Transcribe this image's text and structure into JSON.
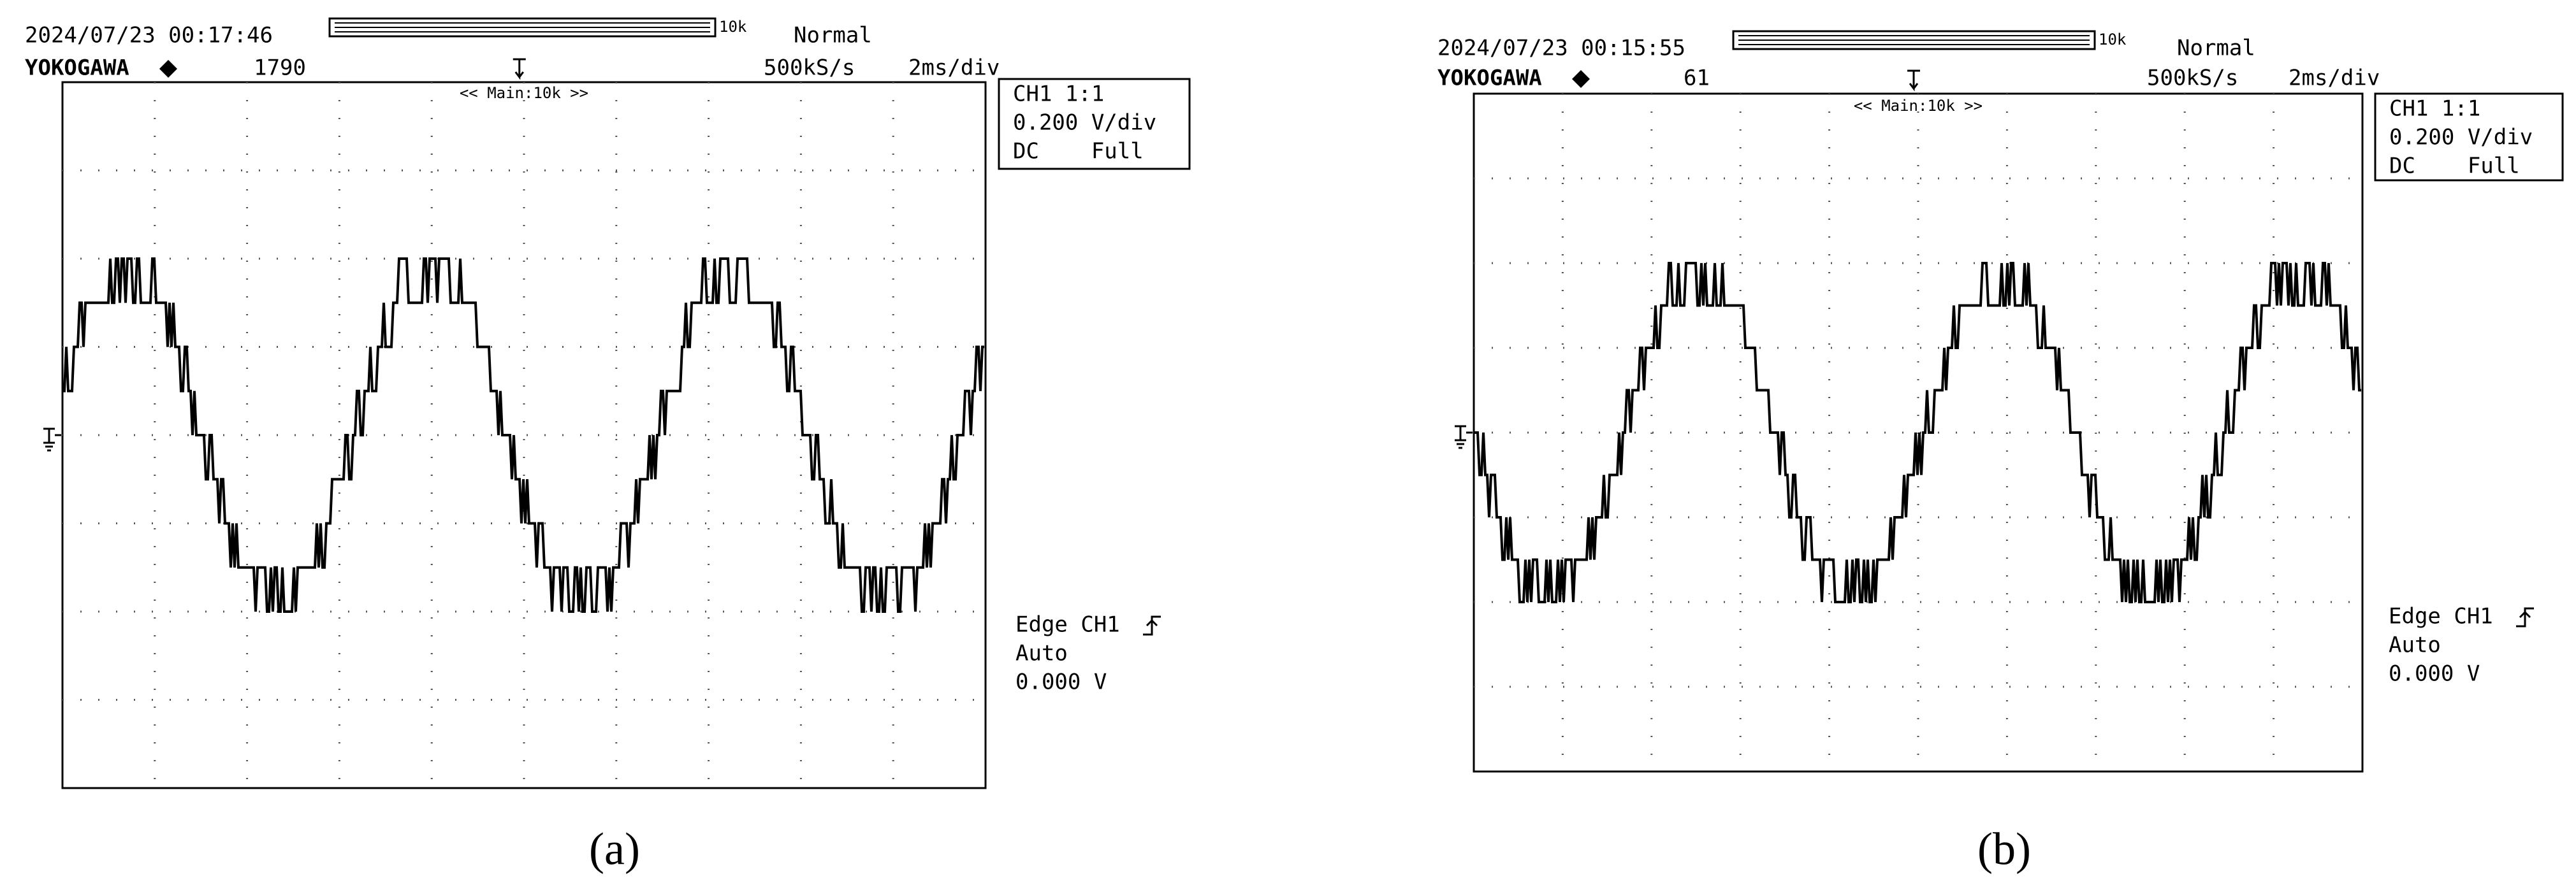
{
  "panels": [
    {
      "timestamp": "2024/07/23 00:17:46",
      "brand": "YOKOGAWA",
      "count": "1790",
      "record": "10k",
      "mode": "Normal",
      "sample_rate": "500kS/s",
      "time_div": "2ms/div",
      "zoom": "<< Main:10k >>",
      "channel": [
        "CH1 1:1",
        "0.200 V/div",
        "DC    Full"
      ],
      "trigger": [
        "Edge CH1",
        "Auto",
        "0.000 V"
      ],
      "label": "(a)"
    },
    {
      "timestamp": "2024/07/23 00:15:55",
      "brand": "YOKOGAWA",
      "count": "61",
      "record": "10k",
      "mode": "Normal",
      "sample_rate": "500kS/s",
      "time_div": "2ms/div",
      "zoom": "<< Main:10k >>",
      "channel": [
        "CH1 1:1",
        "0.200 V/div",
        "DC    Full"
      ],
      "trigger": [
        "Edge CH1",
        "Auto",
        "0.000 V"
      ],
      "label": "(b)"
    }
  ]
}
